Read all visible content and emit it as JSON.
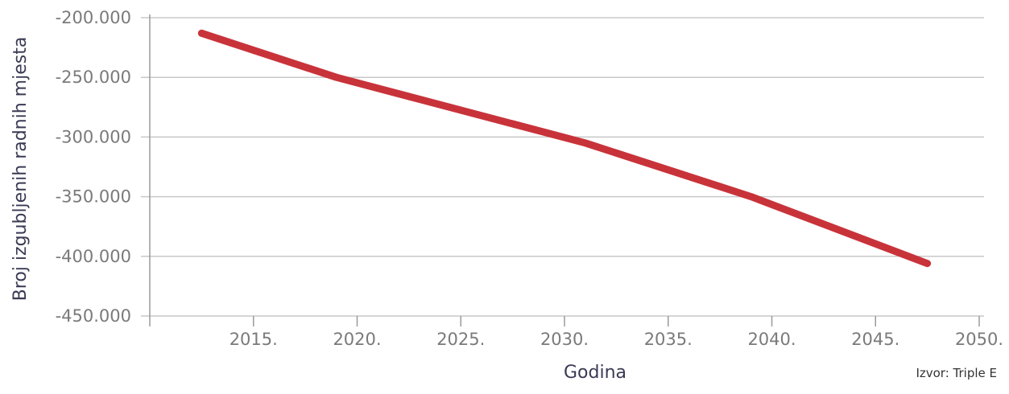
{
  "chart_data": {
    "type": "line",
    "xlabel": "Godina",
    "ylabel": "Broj izgubljenih radnih mjesta",
    "source": "Izvor: Triple E",
    "xlim": [
      2010,
      2050
    ],
    "ylim": [
      -450000,
      -200000
    ],
    "x_ticks": [
      {
        "value": 2015,
        "label": "2015."
      },
      {
        "value": 2020,
        "label": "2020."
      },
      {
        "value": 2025,
        "label": "2025."
      },
      {
        "value": 2030,
        "label": "2030."
      },
      {
        "value": 2035,
        "label": "2035."
      },
      {
        "value": 2040,
        "label": "2040."
      },
      {
        "value": 2045,
        "label": "2045."
      },
      {
        "value": 2050,
        "label": "2050."
      }
    ],
    "y_ticks": [
      {
        "value": -200000,
        "label": "-200.000"
      },
      {
        "value": -250000,
        "label": "-250.000"
      },
      {
        "value": -300000,
        "label": "-300.000"
      },
      {
        "value": -350000,
        "label": "-350.000"
      },
      {
        "value": -400000,
        "label": "-400.000"
      },
      {
        "value": -450000,
        "label": "-450.000"
      }
    ],
    "grid": true,
    "line_color": "#c8333a",
    "series": [
      {
        "x": [
          2012.5,
          2019,
          2031,
          2039,
          2047.5
        ],
        "values": [
          -213000,
          -250000,
          -305000,
          -350000,
          -406000
        ]
      }
    ]
  }
}
